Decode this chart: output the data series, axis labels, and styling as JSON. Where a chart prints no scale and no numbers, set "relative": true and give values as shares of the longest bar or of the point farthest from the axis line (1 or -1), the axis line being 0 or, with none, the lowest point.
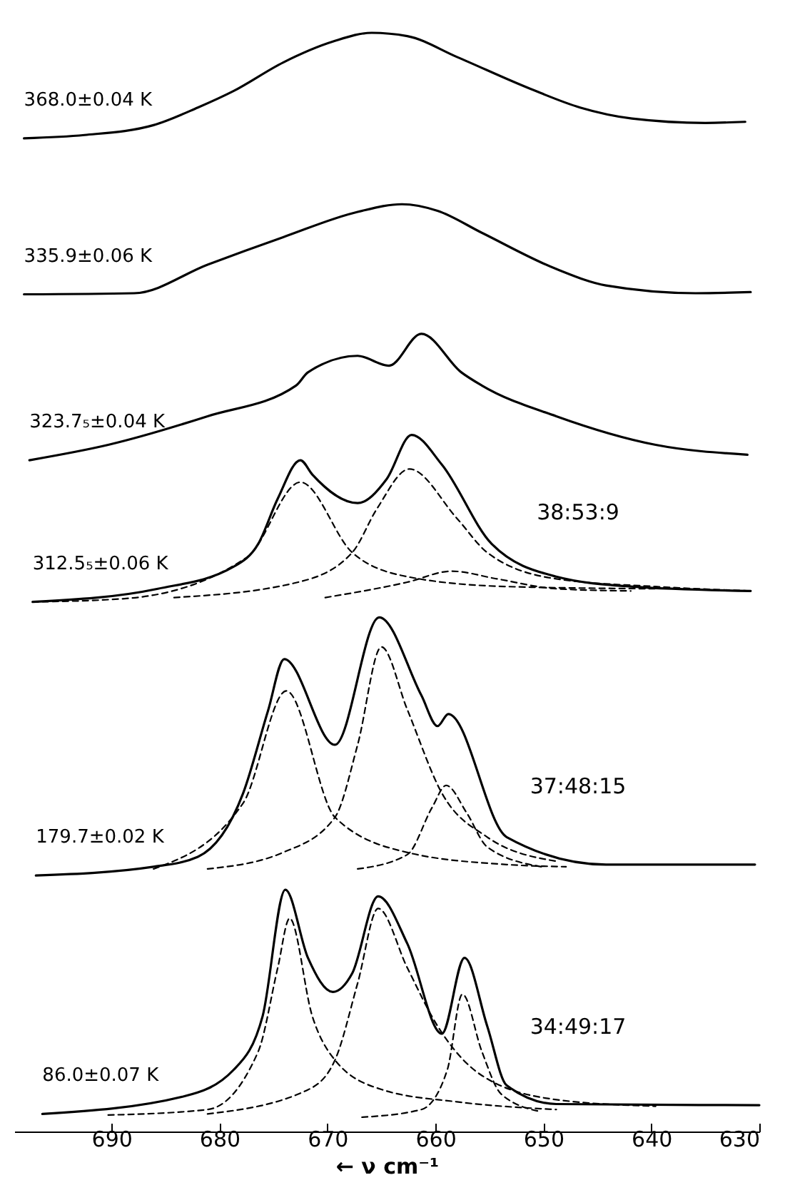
{
  "chart_data": {
    "type": "line",
    "relative": true,
    "xlabel": "← ν   cm⁻¹",
    "xlim": [
      699,
      630
    ],
    "xticks": [
      690,
      680,
      670,
      660,
      650,
      640,
      630
    ],
    "annotations": [
      "38:53:9",
      "37:48:15",
      "34:49:17"
    ],
    "series": [
      {
        "name": "368.0±0.04 K",
        "color": "#000000",
        "line_style": "solid",
        "x": [
          698.1,
          692.5,
          686.1,
          682.0,
          678.7,
          674.1,
          669.5,
          665.9,
          662.6,
          658.0,
          651.2,
          646.6,
          641.8,
          635.0,
          631.3
        ],
        "values": [
          0.904,
          0.907,
          0.916,
          0.932,
          0.947,
          0.973,
          0.992,
          1.0,
          0.997,
          0.978,
          0.949,
          0.932,
          0.922,
          0.918,
          0.919
        ]
      },
      {
        "name": "335.9±0.06 K",
        "color": "#000000",
        "line_style": "solid",
        "x": [
          698.1,
          687.9,
          681.1,
          674.1,
          667.2,
          663.1,
          659.8,
          655.7,
          648.8,
          644.2,
          635.9,
          630.8
        ],
        "values": [
          0.762,
          0.763,
          0.789,
          0.814,
          0.837,
          0.844,
          0.838,
          0.818,
          0.785,
          0.77,
          0.763,
          0.764
        ]
      },
      {
        "name": "323.7₅±0.04 K",
        "color": "#000000",
        "line_style": "solid",
        "x": [
          697.6,
          690.3,
          681.1,
          672.9,
          671.8,
          667.2,
          664.3,
          661.3,
          657.6,
          655.7,
          648.8,
          639.6,
          631.1
        ],
        "values": [
          0.611,
          0.625,
          0.651,
          0.679,
          0.691,
          0.706,
          0.697,
          0.726,
          0.691,
          0.679,
          0.651,
          0.625,
          0.616
        ]
      },
      {
        "name": "312.5₅±0.06 K",
        "color": "#000000",
        "line_style": "solid",
        "x": [
          697.3,
          685.7,
          678.7,
          676.4,
          674.6,
          672.5,
          671.4,
          667.2,
          664.5,
          662.2,
          659.4,
          654.8,
          648.8,
          641.9,
          630.8
        ],
        "values": [
          0.482,
          0.494,
          0.514,
          0.535,
          0.576,
          0.611,
          0.598,
          0.572,
          0.594,
          0.634,
          0.607,
          0.535,
          0.505,
          0.496,
          0.492
        ]
      },
      {
        "color": "#000000",
        "line_style": "dashed",
        "x": [
          697.3,
          688.8,
          677.4,
          672.5,
          667.7,
          662.6,
          653.4,
          639.6
        ],
        "values": [
          0.482,
          0.485,
          0.523,
          0.591,
          0.527,
          0.505,
          0.496,
          0.494
        ]
      },
      {
        "color": "#000000",
        "line_style": "dashed",
        "x": [
          684.2,
          672.7,
          667.7,
          665.4,
          662.4,
          658.0,
          655.2,
          648.8,
          639.6,
          630.8
        ],
        "values": [
          0.486,
          0.5,
          0.527,
          0.567,
          0.603,
          0.558,
          0.527,
          0.503,
          0.496,
          0.492
        ]
      },
      {
        "color": "#000000",
        "line_style": "dashed",
        "x": [
          670.2,
          662.6,
          658.5,
          654.3,
          648.8,
          641.9
        ],
        "values": [
          0.486,
          0.5,
          0.51,
          0.503,
          0.494,
          0.492
        ]
      },
      {
        "name": "179.7±0.02 K",
        "color": "#000000",
        "line_style": "solid",
        "x": [
          697.0,
          686.1,
          682.0,
          677.8,
          675.5,
          674.0,
          669.3,
          665.2,
          661.3,
          659.8,
          658.8,
          653.4,
          644.2,
          630.4
        ],
        "values": [
          0.233,
          0.241,
          0.25,
          0.308,
          0.383,
          0.43,
          0.352,
          0.468,
          0.397,
          0.369,
          0.38,
          0.268,
          0.243,
          0.243
        ]
      },
      {
        "color": "#000000",
        "line_style": "dashed",
        "x": [
          686.1,
          677.8,
          673.8,
          669.3,
          662.6,
          653.4,
          647.9
        ],
        "values": [
          0.239,
          0.299,
          0.401,
          0.286,
          0.254,
          0.243,
          0.241
        ]
      },
      {
        "color": "#000000",
        "line_style": "dashed",
        "x": [
          681.1,
          674.1,
          669.3,
          667.2,
          665.0,
          662.6,
          659.4,
          655.2,
          648.8
        ],
        "values": [
          0.239,
          0.254,
          0.286,
          0.352,
          0.441,
          0.384,
          0.308,
          0.268,
          0.246
        ]
      },
      {
        "color": "#000000",
        "line_style": "dashed",
        "x": [
          667.2,
          662.6,
          660.3,
          659.0,
          657.1,
          655.2,
          650.2
        ],
        "values": [
          0.239,
          0.252,
          0.295,
          0.315,
          0.29,
          0.259,
          0.241
        ]
      },
      {
        "name": "86.0±0.07 K",
        "color": "#000000",
        "line_style": "solid",
        "x": [
          696.4,
          683.3,
          678.7,
          676.0,
          673.9,
          671.8,
          669.5,
          667.7,
          665.3,
          662.6,
          659.4,
          657.3,
          655.2,
          653.4,
          648.8,
          630.0
        ],
        "values": [
          0.016,
          0.032,
          0.056,
          0.105,
          0.22,
          0.158,
          0.127,
          0.144,
          0.214,
          0.171,
          0.089,
          0.158,
          0.096,
          0.042,
          0.025,
          0.024
        ]
      },
      {
        "color": "#000000",
        "line_style": "dashed",
        "x": [
          690.3,
          681.1,
          676.4,
          674.6,
          673.5,
          671.4,
          669.3,
          664.9,
          658.0,
          648.8
        ],
        "values": [
          0.015,
          0.02,
          0.073,
          0.149,
          0.194,
          0.105,
          0.065,
          0.038,
          0.027,
          0.02
        ]
      },
      {
        "color": "#000000",
        "line_style": "dashed",
        "x": [
          681.1,
          671.8,
          669.3,
          667.2,
          665.3,
          662.6,
          659.8,
          655.7,
          648.8,
          639.6
        ],
        "values": [
          0.016,
          0.038,
          0.065,
          0.135,
          0.203,
          0.149,
          0.096,
          0.051,
          0.029,
          0.023
        ]
      },
      {
        "color": "#000000",
        "line_style": "dashed",
        "x": [
          666.8,
          661.3,
          658.9,
          657.5,
          655.7,
          653.9,
          650.2
        ],
        "values": [
          0.013,
          0.02,
          0.056,
          0.125,
          0.073,
          0.034,
          0.018
        ]
      }
    ]
  }
}
